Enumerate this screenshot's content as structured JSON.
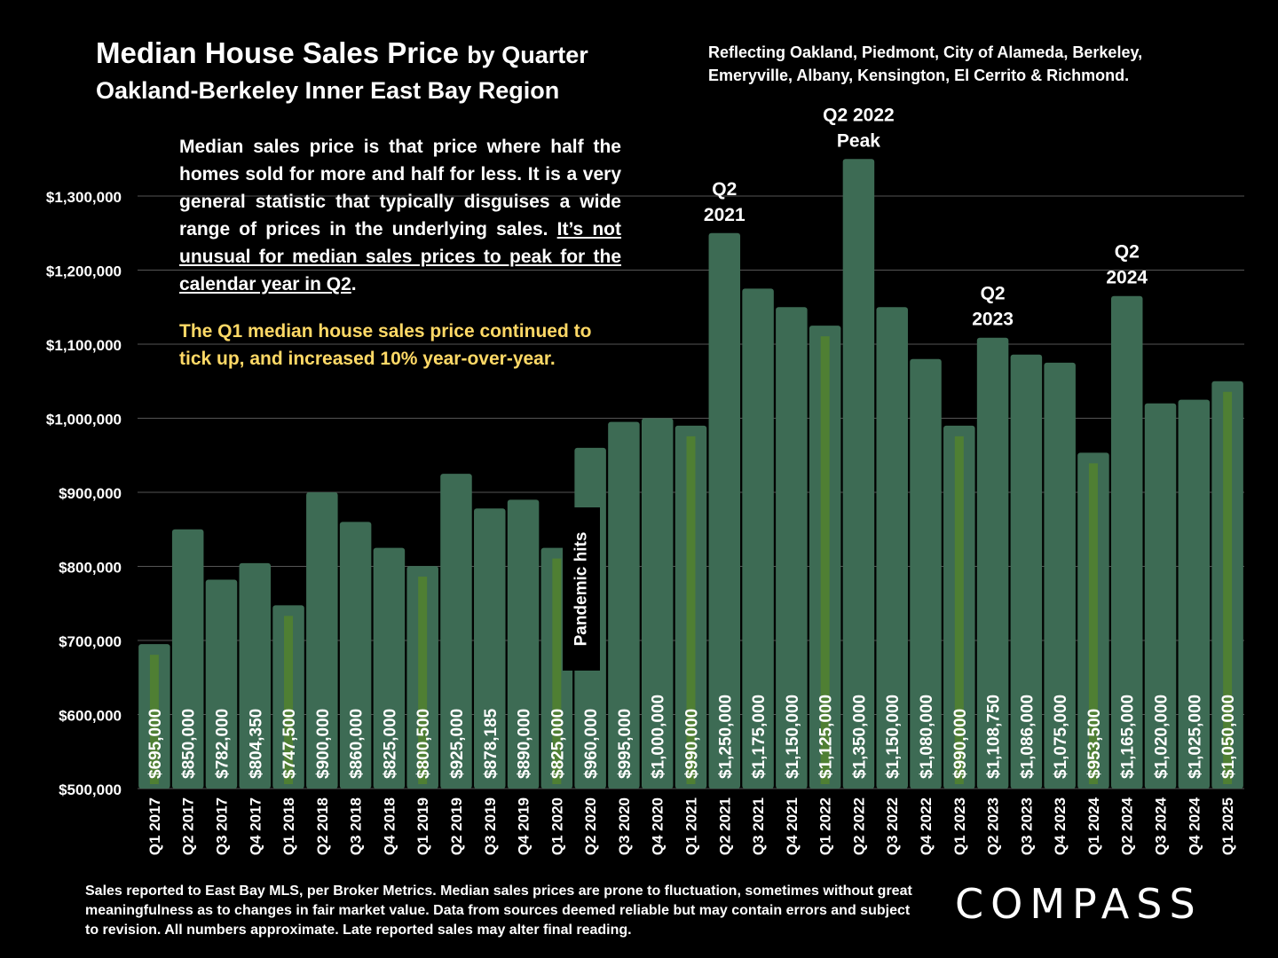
{
  "header": {
    "title": "Median House Sales Price",
    "title_suffix": "by Quarter",
    "subtitle": "Oakland-Berkeley Inner East Bay Region",
    "coverage_line1": "Reflecting Oakland, Piedmont, City of Alameda, Berkeley,",
    "coverage_line2": "Emeryville, Albany, Kensington, El Cerrito & Richmond."
  },
  "explainer": {
    "text1": "Median sales price is that price where half the homes sold for more and half for less. It is a very general statistic that typically disguises a wide range of prices in the underlying sales.",
    "text_underlined": "It’s not unusual for median sales prices to peak for the calendar year in Q2",
    "text_end": ".",
    "highlight": "The Q1 median house sales price continued to tick up, and increased 10% year-over-year."
  },
  "annotations": {
    "pandemic": "Pandemic hits",
    "q2_2021": [
      "Q2",
      "2021"
    ],
    "q2_2022": [
      "Q2 2022",
      "Peak"
    ],
    "q2_2023": [
      "Q2",
      "2023"
    ],
    "q2_2024": [
      "Q2",
      "2024"
    ]
  },
  "footer": {
    "note": "Sales reported to East Bay MLS, per Broker Metrics. Median sales prices are prone to fluctuation, sometimes without great meaningfulness as to changes in fair market value. Data from sources deemed reliable but may contain errors and subject to revision. All numbers approximate. Late reported sales may alter final reading.",
    "logo": "COMPASS"
  },
  "colors": {
    "background": "#000000",
    "bar": "#3d6b54",
    "q1_highlight": "#4f7f33",
    "grid": "#555555",
    "text": "#ffffff",
    "highlight_text": "#ffd966"
  },
  "chart_data": {
    "type": "bar",
    "title": "Median House Sales Price by Quarter",
    "ylim": [
      500000,
      1350000
    ],
    "yticks": [
      "$500,000",
      "$600,000",
      "$700,000",
      "$800,000",
      "$900,000",
      "$1,000,000",
      "$1,100,000",
      "$1,200,000",
      "$1,300,000"
    ],
    "ytick_values": [
      500000,
      600000,
      700000,
      800000,
      900000,
      1000000,
      1100000,
      1200000,
      1300000
    ],
    "grid": true,
    "categories": [
      "Q1 2017",
      "Q2 2017",
      "Q3 2017",
      "Q4 2017",
      "Q1 2018",
      "Q2 2018",
      "Q3 2018",
      "Q4 2018",
      "Q1 2019",
      "Q2 2019",
      "Q3 2019",
      "Q4 2019",
      "Q1 2020",
      "Q2 2020",
      "Q3 2020",
      "Q4 2020",
      "Q1 2021",
      "Q2 2021",
      "Q3 2021",
      "Q4 2021",
      "Q1 2022",
      "Q2 2022",
      "Q3 2022",
      "Q4 2022",
      "Q1 2023",
      "Q2 2023",
      "Q3 2023",
      "Q4 2023",
      "Q1 2024",
      "Q2 2024",
      "Q3 2024",
      "Q4 2024",
      "Q1 2025"
    ],
    "values": [
      695000,
      850000,
      782000,
      804350,
      747500,
      900000,
      860000,
      825000,
      800500,
      925000,
      878185,
      890000,
      825000,
      960000,
      995000,
      1000000,
      990000,
      1250000,
      1175000,
      1150000,
      1125000,
      1350000,
      1150000,
      1080000,
      990000,
      1108750,
      1086000,
      1075000,
      953500,
      1165000,
      1020000,
      1025000,
      1050000
    ],
    "labels": [
      "$695,000",
      "$850,000",
      "$782,000",
      "$804,350",
      "$747,500",
      "$900,000",
      "$860,000",
      "$825,000",
      "$800,500",
      "$925,000",
      "$878,185",
      "$890,000",
      "$825,000",
      "$960,000",
      "$995,000",
      "$1,000,000",
      "$990,000",
      "$1,250,000",
      "$1,175,000",
      "$1,150,000",
      "$1,125,000",
      "$1,350,000",
      "$1,150,000",
      "$1,080,000",
      "$990,000",
      "$1,108,750",
      "$1,086,000",
      "$1,075,000",
      "$953,500",
      "$1,165,000",
      "$1,020,000",
      "$1,025,000",
      "$1,050,000"
    ]
  }
}
